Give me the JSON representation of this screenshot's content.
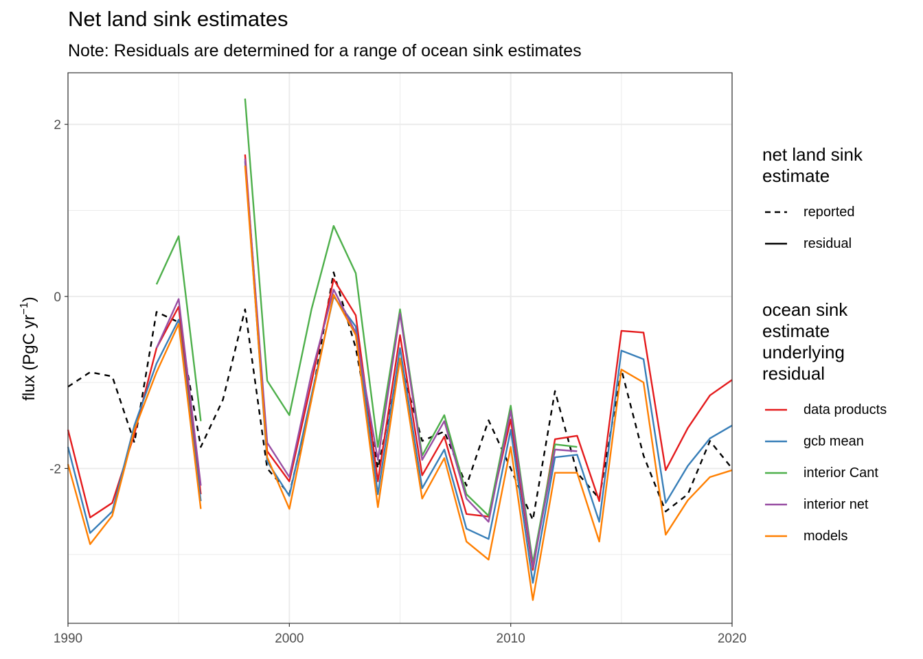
{
  "chart_data": {
    "type": "line",
    "title": "Net land sink estimates",
    "subtitle": "Note: Residuals are determined for a range of ocean sink estimates",
    "xlabel": "",
    "ylabel": "flux (PgC yr",
    "ylabel_sup": "−1",
    "ylabel_close": ")",
    "xlim": [
      1990,
      2020
    ],
    "ylim": [
      -3.8,
      2.6
    ],
    "xticks": [
      1990,
      2000,
      2010,
      2020
    ],
    "xtick_labels": [
      "1990",
      "2000",
      "2010",
      "2020"
    ],
    "yticks": [
      -2,
      0,
      2
    ],
    "ytick_labels": [
      "-2",
      "0",
      "2"
    ],
    "x": [
      1990,
      1991,
      1992,
      1993,
      1994,
      1995,
      1996,
      1997,
      1998,
      1999,
      2000,
      2001,
      2002,
      2003,
      2004,
      2005,
      2006,
      2007,
      2008,
      2009,
      2010,
      2011,
      2012,
      2013,
      2014,
      2015,
      2016,
      2017,
      2018,
      2019,
      2020
    ],
    "reported": {
      "name": "reported",
      "color": "#000000",
      "values": [
        -1.05,
        -0.88,
        -0.93,
        -1.7,
        -0.18,
        -0.3,
        -1.75,
        -1.2,
        -0.15,
        -2.0,
        -2.3,
        -1.2,
        0.28,
        -0.6,
        -2.0,
        -0.75,
        -1.68,
        -1.57,
        -2.2,
        -1.44,
        -2.0,
        -2.6,
        -1.1,
        -2.05,
        -2.35,
        -0.85,
        -1.85,
        -2.5,
        -2.3,
        -1.68,
        -2.0
      ]
    },
    "series": [
      {
        "name": "data products",
        "color": "#e41a1c",
        "values": [
          -1.55,
          -2.57,
          -2.4,
          -1.6,
          -0.6,
          -0.12,
          -2.3,
          null,
          1.65,
          -1.8,
          -2.15,
          -1.0,
          0.2,
          -0.22,
          -2.15,
          -0.45,
          -2.08,
          -1.63,
          -2.53,
          -2.56,
          -1.43,
          -3.18,
          -1.66,
          -1.62,
          -2.38,
          -0.4,
          -0.42,
          -2.02,
          -1.53,
          -1.15,
          -0.97
        ]
      },
      {
        "name": "gcb mean",
        "color": "#377eb8",
        "values": [
          -1.75,
          -2.75,
          -2.5,
          -1.5,
          -0.78,
          -0.27,
          -2.38,
          null,
          1.57,
          -1.92,
          -2.32,
          -1.15,
          0.0,
          -0.35,
          -2.3,
          -0.6,
          -2.23,
          -1.78,
          -2.7,
          -2.82,
          -1.55,
          -3.33,
          -1.87,
          -1.84,
          -2.62,
          -0.63,
          -0.73,
          -2.4,
          -1.97,
          -1.65,
          -1.5
        ]
      },
      {
        "name": "interior Cant",
        "color": "#4daf4a",
        "values": [
          null,
          null,
          null,
          null,
          0.14,
          0.7,
          -1.45,
          null,
          2.3,
          -0.98,
          -1.38,
          -0.15,
          0.82,
          0.27,
          -1.75,
          -0.15,
          -1.85,
          -1.38,
          -2.3,
          -2.55,
          -1.27,
          -3.1,
          -1.72,
          -1.75,
          null,
          null,
          null,
          null,
          null,
          null,
          null
        ]
      },
      {
        "name": "interior net",
        "color": "#984ea3",
        "values": [
          null,
          null,
          null,
          null,
          -0.6,
          -0.03,
          -2.2,
          null,
          1.6,
          -1.7,
          -2.1,
          -0.9,
          0.08,
          -0.42,
          -1.9,
          -0.2,
          -1.9,
          -1.45,
          -2.35,
          -2.62,
          -1.33,
          -3.15,
          -1.78,
          -1.8,
          null,
          null,
          null,
          null,
          null,
          null,
          null
        ]
      },
      {
        "name": "models",
        "color": "#ff7f00",
        "values": [
          -1.95,
          -2.88,
          -2.55,
          -1.55,
          -0.88,
          -0.32,
          -2.47,
          null,
          1.52,
          -1.87,
          -2.47,
          -1.2,
          0.02,
          -0.45,
          -2.45,
          -0.72,
          -2.35,
          -1.88,
          -2.85,
          -3.06,
          -1.75,
          -3.53,
          -2.05,
          -2.05,
          -2.85,
          -0.85,
          -1.0,
          -2.77,
          -2.37,
          -2.1,
          -2.02
        ]
      }
    ]
  },
  "legend": {
    "linetype_title_1": "net land sink",
    "linetype_title_2": "estimate",
    "reported_label": "reported",
    "residual_label": "residual",
    "ocean_title_1": "ocean sink",
    "ocean_title_2": "estimate",
    "ocean_title_3": "underlying",
    "ocean_title_4": "residual",
    "items": [
      "data products",
      "gcb mean",
      "interior Cant",
      "interior net",
      "models"
    ]
  }
}
